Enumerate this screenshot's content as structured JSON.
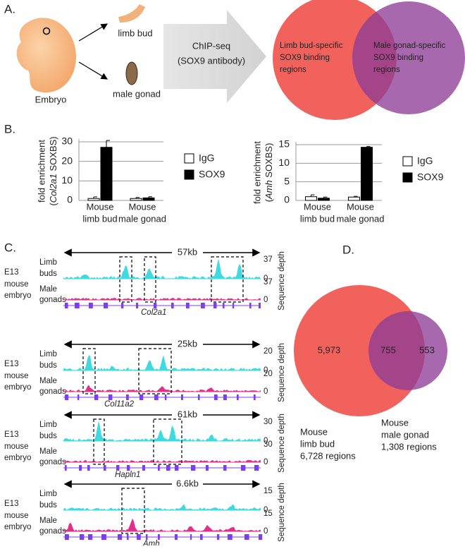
{
  "panel_a": {
    "label": "A.",
    "embryo": "Embryo",
    "limb_bud": "limb bud",
    "male_gonad": "male gonad",
    "method": [
      "ChIP-seq",
      "(SOX9 antibody)"
    ],
    "venn_left": [
      "Limb bud-specific",
      "SOX9 binding",
      "regions"
    ],
    "venn_right": [
      "Male gonad-specific",
      "SOX9 binding",
      "regions"
    ]
  },
  "panel_b_label": "B.",
  "chart_data": [
    {
      "type": "bar",
      "y_label": [
        "fold enrichment",
        {
          "pre": "(",
          "gene": "Col2a1",
          "post": " SOXBS)"
        }
      ],
      "categories": [
        [
          "Mouse",
          "limb bud"
        ],
        [
          "Mouse",
          "male gonad"
        ]
      ],
      "series": [
        {
          "name": "IgG",
          "color": "#ffffff",
          "values": [
            1.0,
            1.0
          ],
          "errors": [
            0.8,
            0.5
          ]
        },
        {
          "name": "SOX9",
          "color": "#000000",
          "values": [
            27.2,
            1.3
          ],
          "errors": [
            3.5,
            0.6
          ]
        }
      ],
      "ylim": [
        0,
        30
      ],
      "yticks": [
        0,
        10,
        20,
        30
      ],
      "grid": true
    },
    {
      "type": "bar",
      "y_label": [
        "fold enrichment",
        {
          "pre": "(",
          "gene": "Amh",
          "post": " SOXBS)"
        }
      ],
      "categories": [
        [
          "Mouse",
          "limb bud"
        ],
        [
          "Mouse",
          "male gonad"
        ]
      ],
      "series": [
        {
          "name": "IgG",
          "color": "#ffffff",
          "values": [
            1.0,
            0.9
          ],
          "errors": [
            0.5,
            0.2
          ]
        },
        {
          "name": "SOX9",
          "color": "#000000",
          "values": [
            0.6,
            14.3
          ],
          "errors": [
            0.3,
            0.2
          ]
        }
      ],
      "ylim": [
        0,
        15
      ],
      "yticks": [
        0,
        5,
        10,
        15
      ],
      "grid": true
    }
  ],
  "panel_c": {
    "label": "C.",
    "blocks": [
      {
        "scale": "57kb",
        "gene": "Col2a1",
        "row_label": [
          "E13",
          "mouse",
          "embryo"
        ],
        "tracks": [
          "Limb",
          "buds",
          "Male",
          "gonads"
        ],
        "depth": [
          "37",
          "0",
          "37",
          "0"
        ],
        "axis_label": "Sequence depth"
      },
      {
        "scale": "25kb",
        "gene": "Col11a2",
        "row_label": [
          "E13",
          "mouse",
          "embryo"
        ],
        "tracks": [
          "Limb",
          "buds",
          "Male",
          "gonads"
        ],
        "depth": [
          "20",
          "0",
          "20",
          "0"
        ],
        "axis_label": "Sequence depth"
      },
      {
        "scale": "61kb",
        "gene": "Hapln1",
        "row_label": [
          "E13",
          "mouse",
          "embryo"
        ],
        "tracks": [
          "Limb",
          "buds",
          "Male",
          "gonads"
        ],
        "depth": [
          "30",
          "0",
          "30",
          "0"
        ],
        "axis_label": "Sequence depth"
      },
      {
        "scale": "6.6kb",
        "gene": "Amh",
        "row_label": [
          "E13",
          "mouse",
          "embryo"
        ],
        "tracks": [
          "Limb",
          "buds",
          "Male",
          "gonads"
        ],
        "depth": [
          "15",
          "0",
          "15",
          "0"
        ],
        "axis_label": "Sequence depth"
      }
    ]
  },
  "panel_d": {
    "label": "D.",
    "only_limb": "5,973",
    "overlap": "755",
    "only_gonad": "553",
    "left": [
      "Mouse",
      "limb bud",
      "6,728 regions"
    ],
    "right": [
      "Mouse",
      "male gonad",
      "1,308 regions"
    ]
  }
}
